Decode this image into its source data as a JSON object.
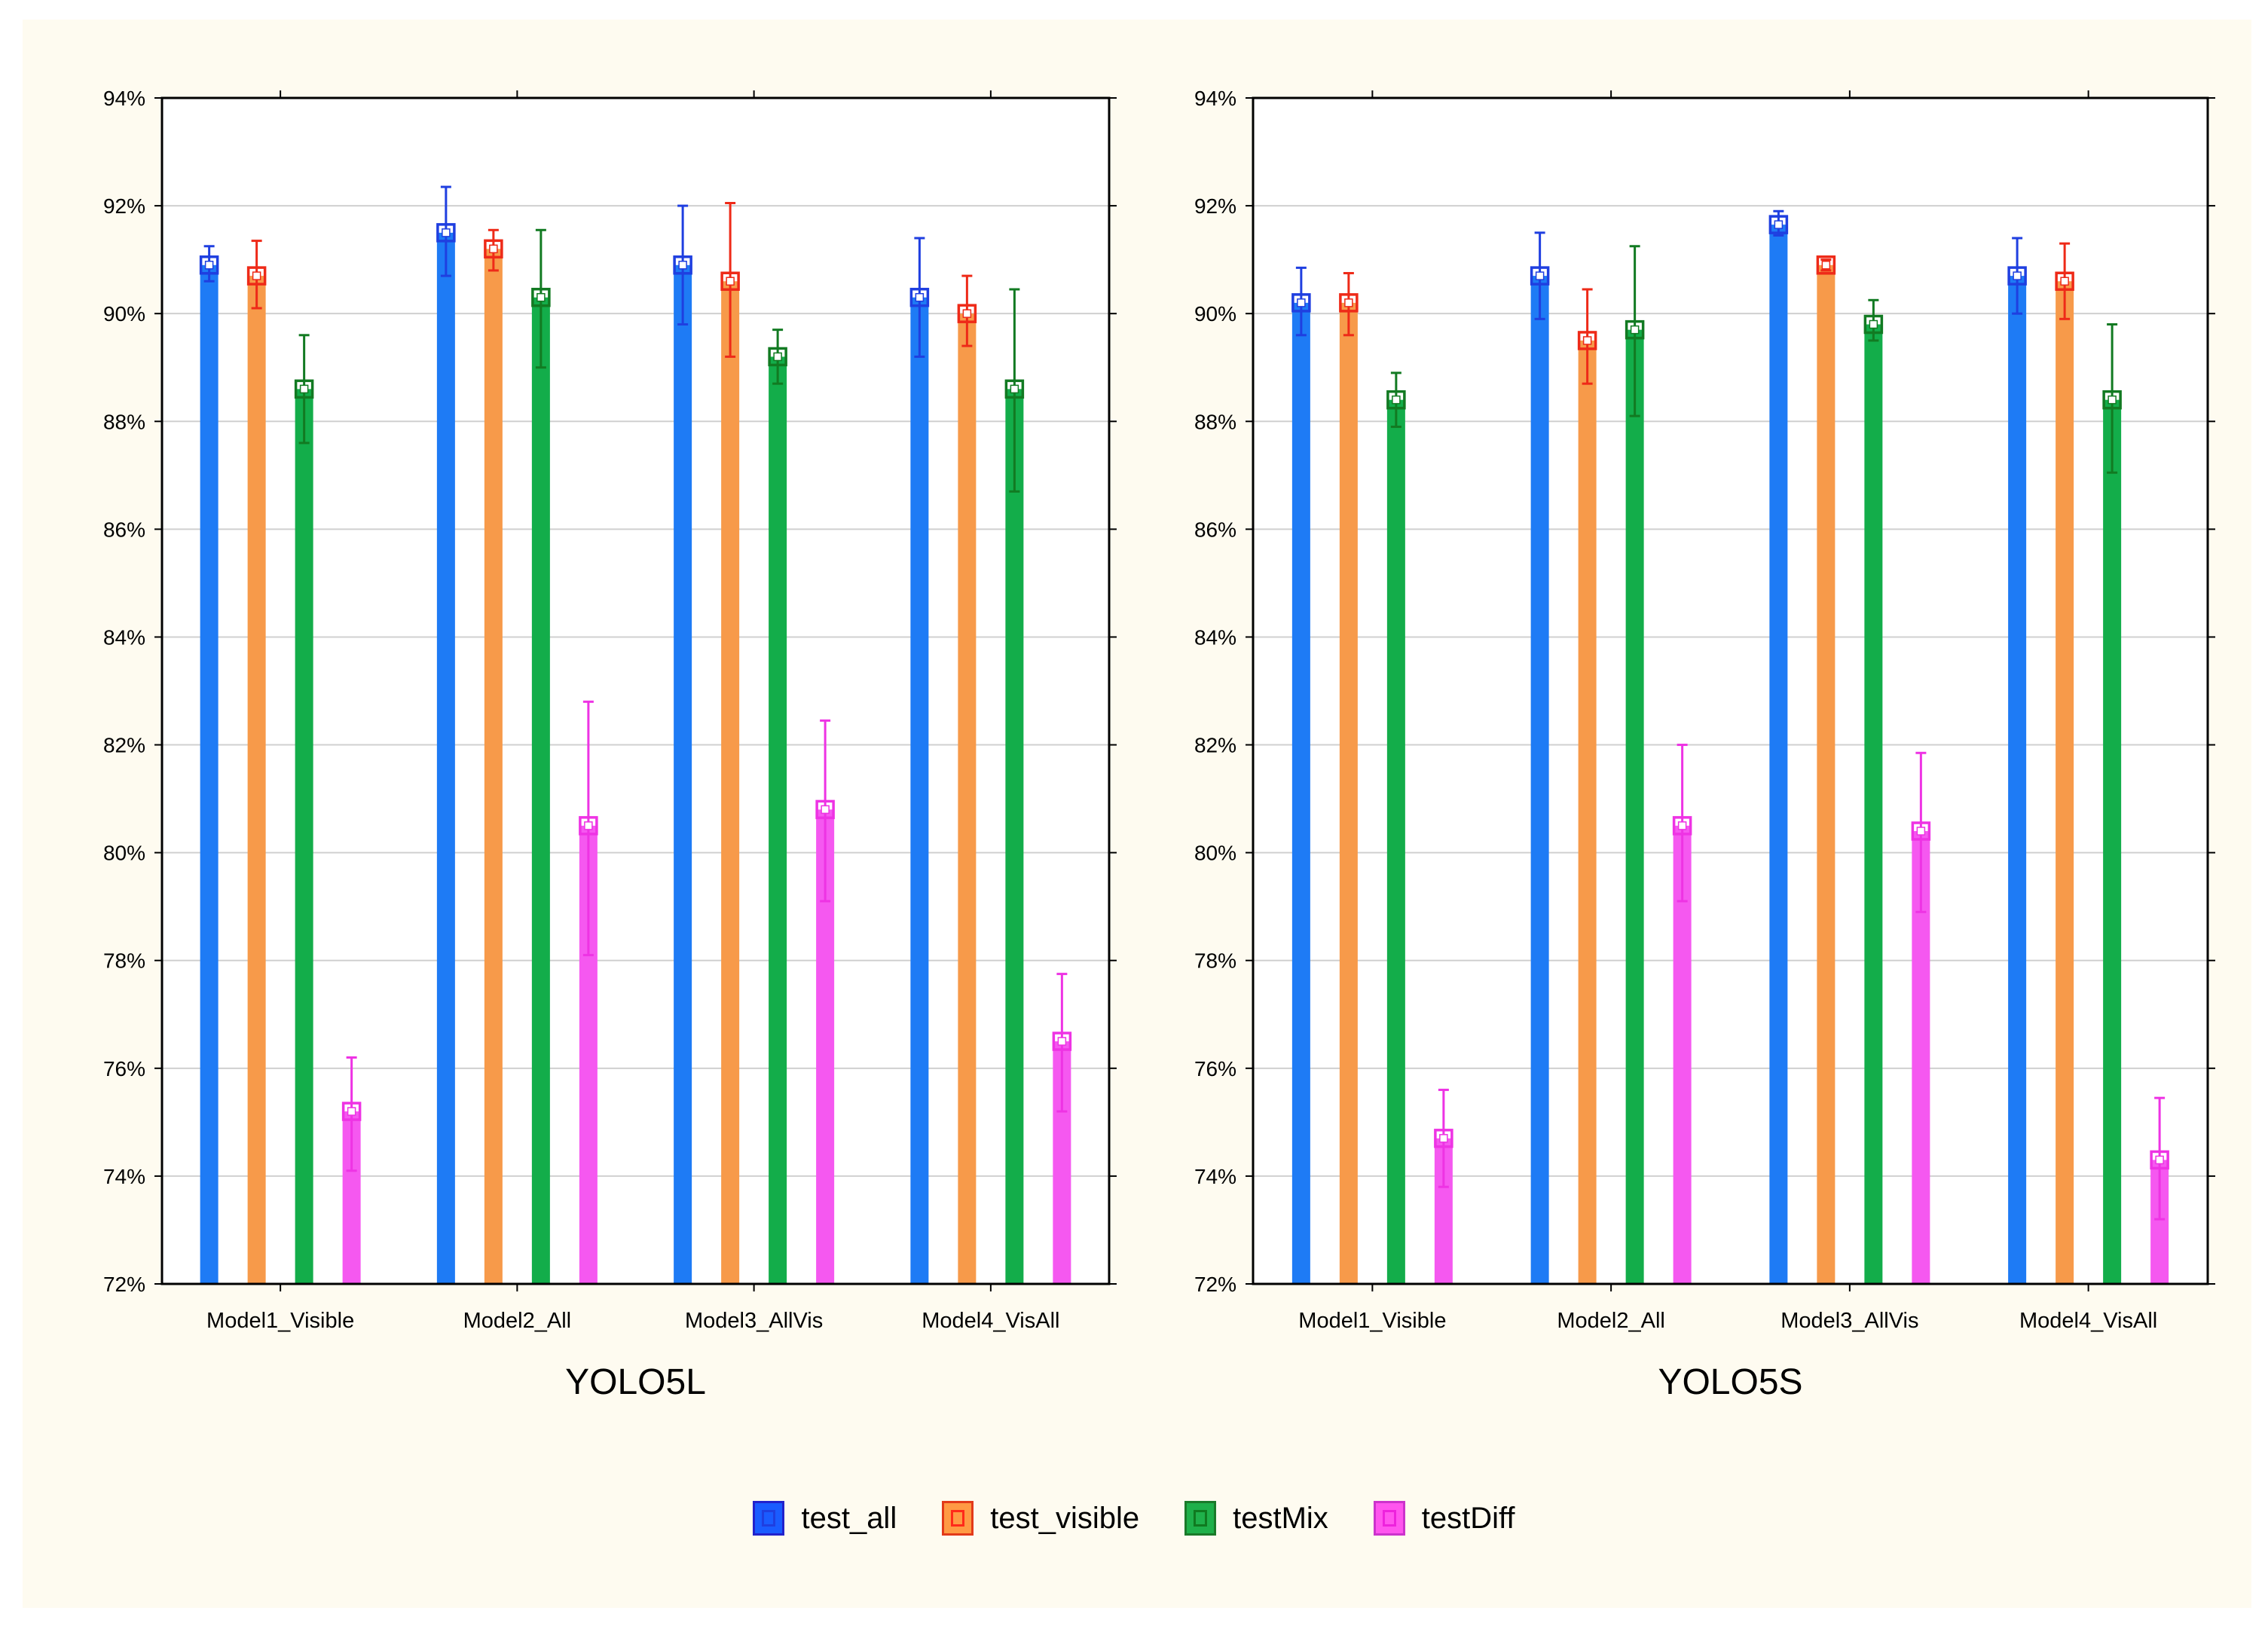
{
  "chart_data": [
    {
      "type": "bar",
      "title": "YOLO5L",
      "categories": [
        "Model1_Visible",
        "Model2_All",
        "Model3_AllVis",
        "Model4_VisAll"
      ],
      "y_ticks": [
        "72%",
        "74%",
        "76%",
        "78%",
        "80%",
        "82%",
        "84%",
        "86%",
        "88%",
        "90%",
        "92%",
        "94%"
      ],
      "ylim": [
        72,
        94
      ],
      "grid": true,
      "error_bars": true,
      "series": [
        {
          "name": "test_all",
          "values": [
            90.9,
            91.5,
            90.9,
            90.3
          ],
          "err_low": [
            90.6,
            90.7,
            89.8,
            89.2
          ],
          "err_high": [
            91.25,
            92.35,
            92.0,
            91.4
          ]
        },
        {
          "name": "test_visible",
          "values": [
            90.7,
            91.2,
            90.6,
            90.0
          ],
          "err_low": [
            90.1,
            90.8,
            89.2,
            89.4
          ],
          "err_high": [
            91.35,
            91.55,
            92.05,
            90.7
          ]
        },
        {
          "name": "testMix",
          "values": [
            88.6,
            90.3,
            89.2,
            88.6
          ],
          "err_low": [
            87.6,
            89.0,
            88.7,
            86.7
          ],
          "err_high": [
            89.6,
            91.55,
            89.7,
            90.45
          ]
        },
        {
          "name": "testDiff",
          "values": [
            75.2,
            80.5,
            80.8,
            76.5
          ],
          "err_low": [
            74.1,
            78.1,
            79.1,
            75.2
          ],
          "err_high": [
            76.2,
            82.8,
            82.45,
            77.75
          ]
        }
      ]
    },
    {
      "type": "bar",
      "title": "YOLO5S",
      "categories": [
        "Model1_Visible",
        "Model2_All",
        "Model3_AllVis",
        "Model4_VisAll"
      ],
      "y_ticks": [
        "72%",
        "74%",
        "76%",
        "78%",
        "80%",
        "82%",
        "84%",
        "86%",
        "88%",
        "90%",
        "92%",
        "94%"
      ],
      "ylim": [
        72,
        94
      ],
      "grid": true,
      "error_bars": true,
      "series": [
        {
          "name": "test_all",
          "values": [
            90.2,
            90.7,
            91.65,
            90.7
          ],
          "err_low": [
            89.6,
            89.9,
            91.45,
            90.0
          ],
          "err_high": [
            90.85,
            91.5,
            91.9,
            91.4
          ]
        },
        {
          "name": "test_visible",
          "values": [
            90.2,
            89.5,
            90.9,
            90.6
          ],
          "err_low": [
            89.6,
            88.7,
            90.8,
            89.9
          ],
          "err_high": [
            90.75,
            90.45,
            91.0,
            91.3
          ]
        },
        {
          "name": "testMix",
          "values": [
            88.4,
            89.7,
            89.8,
            88.4
          ],
          "err_low": [
            87.9,
            88.1,
            89.5,
            87.05
          ],
          "err_high": [
            88.9,
            91.25,
            90.25,
            89.8
          ]
        },
        {
          "name": "testDiff",
          "values": [
            74.7,
            80.5,
            80.4,
            74.3
          ],
          "err_low": [
            73.8,
            79.1,
            78.9,
            73.2
          ],
          "err_high": [
            75.6,
            82.0,
            81.85,
            75.45
          ]
        }
      ]
    }
  ],
  "legend": {
    "placement": "bottom-center",
    "items": [
      {
        "label": "test_all",
        "fill": "#1a5cff",
        "border": "#2222cc",
        "mark": "#1f3fe0"
      },
      {
        "label": "test_visible",
        "fill": "#ff9a44",
        "border": "#e23a1a",
        "mark": "#ff2a1a"
      },
      {
        "label": "testMix",
        "fill": "#1fb04a",
        "border": "#1b7a2a",
        "mark": "#107a20"
      },
      {
        "label": "testDiff",
        "fill": "#ff55ee",
        "border": "#cc33cc",
        "mark": "#ee22dd"
      }
    ]
  },
  "colors": {
    "bar": [
      "#1e7bf5",
      "#f79a4a",
      "#13ad4a",
      "#f558f0"
    ],
    "err": [
      "#1f3fe0",
      "#ee2a18",
      "#127a22",
      "#ee33e4"
    ],
    "grid": "#d0d0d0",
    "axis": "#000000",
    "background": "#fefbf0",
    "plot_bg": "#ffffff"
  }
}
